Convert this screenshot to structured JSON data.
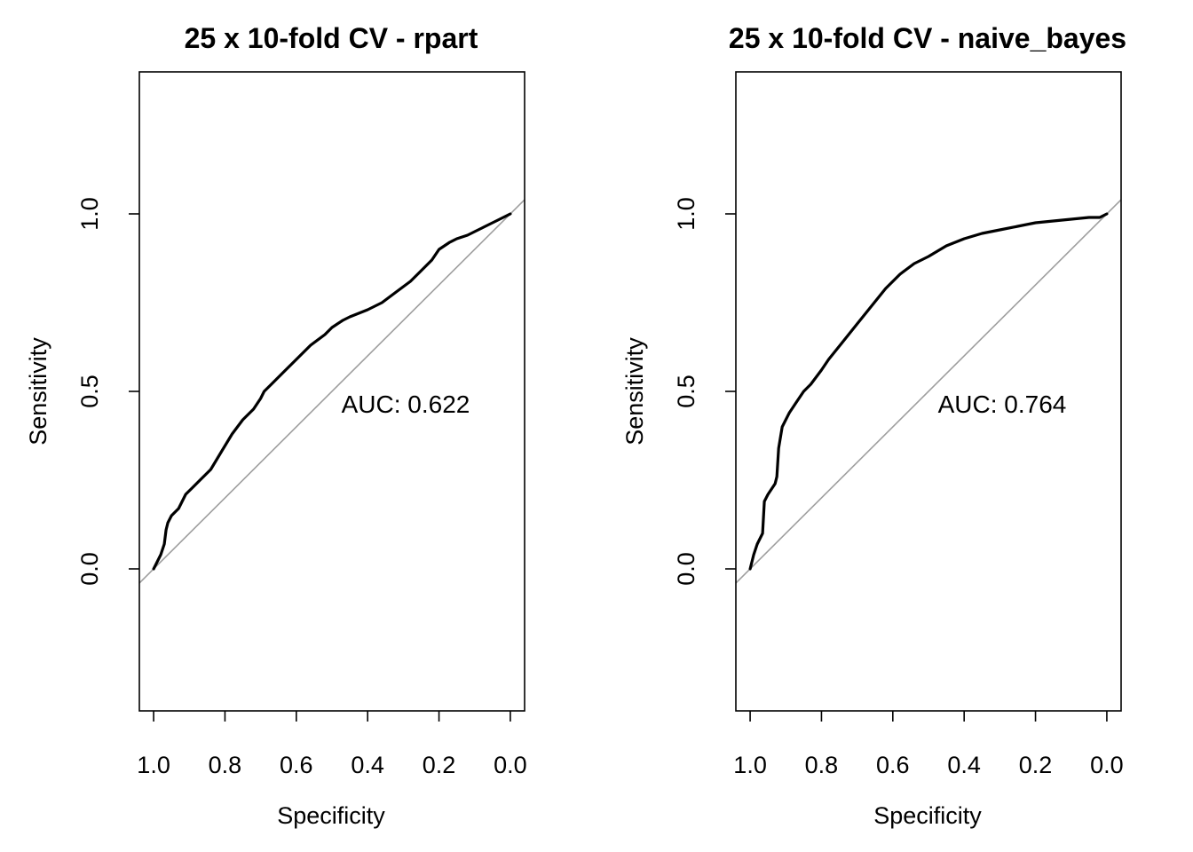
{
  "colors": {
    "curve": "#000000",
    "diagonal": "#9e9e9e",
    "axis": "#000000",
    "background": "#ffffff"
  },
  "chart_data": [
    {
      "type": "line",
      "title": "25 x 10-fold CV - rpart",
      "xlabel": "Specificity",
      "ylabel": "Sensitivity",
      "x_reversed": true,
      "xlim": [
        1.04,
        -0.04
      ],
      "ylim": [
        -0.4,
        1.4
      ],
      "x_ticks": [
        1.0,
        0.8,
        0.6,
        0.4,
        0.2,
        0.0
      ],
      "x_tick_labels": [
        "1.0",
        "0.8",
        "0.6",
        "0.4",
        "0.2",
        "0.0"
      ],
      "y_ticks": [
        0.0,
        0.5,
        1.0
      ],
      "y_tick_labels": [
        "0.0",
        "0.5",
        "1.0"
      ],
      "grid": false,
      "annotation": "AUC: 0.622",
      "reference_line": "diagonal",
      "series": [
        {
          "x": [
            1.0,
            0.99,
            0.98,
            0.97,
            0.965,
            0.96,
            0.95,
            0.93,
            0.91,
            0.89,
            0.87,
            0.84,
            0.81,
            0.78,
            0.75,
            0.72,
            0.7,
            0.69,
            0.67,
            0.64,
            0.6,
            0.56,
            0.52,
            0.5,
            0.47,
            0.45,
            0.4,
            0.36,
            0.32,
            0.28,
            0.25,
            0.22,
            0.2,
            0.17,
            0.15,
            0.12,
            0.1,
            0.08,
            0.06,
            0.04,
            0.02,
            0.0
          ],
          "y": [
            0.0,
            0.02,
            0.04,
            0.07,
            0.11,
            0.13,
            0.15,
            0.17,
            0.21,
            0.23,
            0.25,
            0.28,
            0.33,
            0.38,
            0.42,
            0.45,
            0.48,
            0.5,
            0.52,
            0.55,
            0.59,
            0.63,
            0.66,
            0.68,
            0.7,
            0.71,
            0.73,
            0.75,
            0.78,
            0.81,
            0.84,
            0.87,
            0.9,
            0.92,
            0.93,
            0.94,
            0.95,
            0.96,
            0.97,
            0.98,
            0.99,
            1.0
          ]
        }
      ]
    },
    {
      "type": "line",
      "title": "25 x 10-fold CV - naive_bayes",
      "xlabel": "Specificity",
      "ylabel": "Sensitivity",
      "x_reversed": true,
      "xlim": [
        1.04,
        -0.04
      ],
      "ylim": [
        -0.4,
        1.4
      ],
      "x_ticks": [
        1.0,
        0.8,
        0.6,
        0.4,
        0.2,
        0.0
      ],
      "x_tick_labels": [
        "1.0",
        "0.8",
        "0.6",
        "0.4",
        "0.2",
        "0.0"
      ],
      "y_ticks": [
        0.0,
        0.5,
        1.0
      ],
      "y_tick_labels": [
        "0.0",
        "0.5",
        "1.0"
      ],
      "grid": false,
      "annotation": "AUC: 0.764",
      "reference_line": "diagonal",
      "series": [
        {
          "x": [
            1.0,
            0.99,
            0.98,
            0.965,
            0.96,
            0.95,
            0.93,
            0.925,
            0.92,
            0.91,
            0.89,
            0.87,
            0.85,
            0.83,
            0.8,
            0.78,
            0.74,
            0.7,
            0.66,
            0.62,
            0.58,
            0.54,
            0.5,
            0.45,
            0.4,
            0.35,
            0.3,
            0.25,
            0.2,
            0.15,
            0.1,
            0.05,
            0.02,
            0.0
          ],
          "y": [
            0.0,
            0.04,
            0.07,
            0.1,
            0.19,
            0.21,
            0.24,
            0.26,
            0.34,
            0.4,
            0.44,
            0.47,
            0.5,
            0.52,
            0.56,
            0.59,
            0.64,
            0.69,
            0.74,
            0.79,
            0.83,
            0.86,
            0.88,
            0.91,
            0.93,
            0.945,
            0.955,
            0.965,
            0.975,
            0.98,
            0.985,
            0.99,
            0.99,
            1.0
          ]
        }
      ]
    }
  ]
}
